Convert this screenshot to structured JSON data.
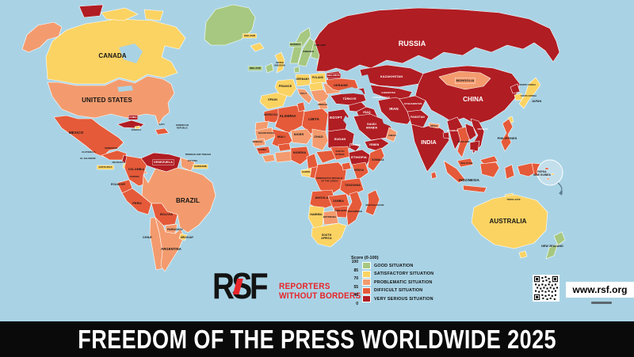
{
  "poster": {
    "title": "FREEDOM OF THE PRESS WORLDWIDE 2025"
  },
  "brand": {
    "initials": "RSF",
    "name_line1": "REPORTERS",
    "name_line2": "WITHOUT BORDERS",
    "website": "www.rsf.org",
    "accent_color": "#E8252A"
  },
  "legend": {
    "scale_title": "Score (0-100)",
    "ticks": [
      "100",
      "85",
      "70",
      "55",
      "40",
      "0"
    ],
    "entries": [
      {
        "status": "good",
        "label": "GOOD SITUATION",
        "color": "#A6C880"
      },
      {
        "status": "satisfactory",
        "label": "SATISFACTORY SITUATION",
        "color": "#FBD363"
      },
      {
        "status": "problematic",
        "label": "PROBLEMATIC SITUATION",
        "color": "#F39B6E"
      },
      {
        "status": "difficult",
        "label": "DIFFICULT SITUATION",
        "color": "#E55A39"
      },
      {
        "status": "very_serious",
        "label": "VERY SERIOUS SITUATION",
        "color": "#B01D23"
      }
    ]
  },
  "map": {
    "ocean_color": "#A9D3E5",
    "countries": [
      {
        "id": "greenland",
        "label": null,
        "status": "good"
      },
      {
        "id": "canada",
        "label": "CANADA",
        "status": "satisfactory"
      },
      {
        "id": "usa",
        "label": "UNITED STATES",
        "status": "problematic"
      },
      {
        "id": "mexico",
        "label": "MEXICO",
        "status": "difficult"
      },
      {
        "id": "guatemala",
        "label": "GUATEMALA",
        "status": "difficult"
      },
      {
        "id": "honduras",
        "label": "HONDURAS",
        "status": "difficult"
      },
      {
        "id": "el_salvador",
        "label": "EL SALVADOR",
        "status": "difficult"
      },
      {
        "id": "nicaragua",
        "label": "NICARAGUA",
        "status": "very_serious"
      },
      {
        "id": "costa_rica",
        "label": "COSTA RICA",
        "status": "satisfactory"
      },
      {
        "id": "panama",
        "label": "PANAMA",
        "status": "problematic"
      },
      {
        "id": "cuba",
        "label": "CUBA",
        "status": "very_serious"
      },
      {
        "id": "jamaica",
        "label": "JAMAICA",
        "status": "satisfactory"
      },
      {
        "id": "haiti",
        "label": "HAITI",
        "status": "difficult"
      },
      {
        "id": "dominican",
        "label": "DOMINICAN\nREPUBLIC",
        "status": "problematic"
      },
      {
        "id": "trinidad",
        "label": "TRINIDAD AND TOBAGO",
        "status": "satisfactory"
      },
      {
        "id": "venezuela",
        "label": "VENEZUELA",
        "status": "very_serious"
      },
      {
        "id": "colombia",
        "label": "COLOMBIA",
        "status": "difficult"
      },
      {
        "id": "guyana",
        "label": "GUYANA",
        "status": "problematic"
      },
      {
        "id": "suriname",
        "label": "SURINAME",
        "status": "satisfactory"
      },
      {
        "id": "ecuador",
        "label": "ECUADOR",
        "status": "difficult"
      },
      {
        "id": "peru",
        "label": "PERU",
        "status": "difficult"
      },
      {
        "id": "brazil",
        "label": "BRAZIL",
        "status": "problematic"
      },
      {
        "id": "bolivia",
        "label": "BOLIVIA",
        "status": "difficult"
      },
      {
        "id": "paraguay",
        "label": "PARAGUAY",
        "status": "problematic"
      },
      {
        "id": "chile",
        "label": "CHILE",
        "status": "problematic"
      },
      {
        "id": "argentina",
        "label": "ARGENTINA",
        "status": "problematic"
      },
      {
        "id": "uruguay",
        "label": "URUGUAY",
        "status": "satisfactory"
      },
      {
        "id": "iceland",
        "label": "ICELAND",
        "status": "satisfactory"
      },
      {
        "id": "ireland",
        "label": "IRELAND",
        "status": "good"
      },
      {
        "id": "uk",
        "label": "UNITED\nKINGDOM",
        "status": "satisfactory"
      },
      {
        "id": "norway",
        "label": "NORWAY",
        "status": "good"
      },
      {
        "id": "sweden",
        "label": "SWEDEN",
        "status": "good"
      },
      {
        "id": "finland",
        "label": "FINLAND",
        "status": "good"
      },
      {
        "id": "denmark",
        "label": null,
        "status": "good"
      },
      {
        "id": "baltics",
        "label": null,
        "status": "satisfactory"
      },
      {
        "id": "poland",
        "label": "POLAND",
        "status": "satisfactory"
      },
      {
        "id": "germany",
        "label": "GERMANY",
        "status": "satisfactory"
      },
      {
        "id": "france",
        "label": "FRANCE",
        "status": "satisfactory"
      },
      {
        "id": "spain",
        "label": "SPAIN",
        "status": "satisfactory"
      },
      {
        "id": "italy",
        "label": "ITALY",
        "status": "problematic"
      },
      {
        "id": "greece",
        "label": "GREECE",
        "status": "problematic"
      },
      {
        "id": "ukraine",
        "label": "UKRAINE",
        "status": "difficult"
      },
      {
        "id": "belarus",
        "label": "BELARUS",
        "status": "very_serious"
      },
      {
        "id": "russia",
        "label": "RUSSIA",
        "status": "very_serious"
      },
      {
        "id": "turkiye",
        "label": "TÜRKIYE",
        "status": "very_serious"
      },
      {
        "id": "kazakhstan",
        "label": "KAZAKHSTAN",
        "status": "very_serious"
      },
      {
        "id": "uzbekistan",
        "label": "UZBEKISTAN",
        "status": "very_serious"
      },
      {
        "id": "turkmenistan",
        "label": "TURKMENISTAN",
        "status": "very_serious"
      },
      {
        "id": "caucasus",
        "label": null,
        "status": "very_serious"
      },
      {
        "id": "syria",
        "label": null,
        "status": "very_serious"
      },
      {
        "id": "iraq",
        "label": "IRAQ",
        "status": "very_serious"
      },
      {
        "id": "iran",
        "label": "IRAN",
        "status": "very_serious"
      },
      {
        "id": "saudi_arabia",
        "label": "SAUDI\nARABIA",
        "status": "very_serious"
      },
      {
        "id": "yemen",
        "label": "YEMEN",
        "status": "very_serious"
      },
      {
        "id": "oman",
        "label": "OMAN",
        "status": "problematic"
      },
      {
        "id": "afghanistan",
        "label": "AFGHANISTAN",
        "status": "very_serious"
      },
      {
        "id": "pakistan",
        "label": "PAKISTAN",
        "status": "very_serious"
      },
      {
        "id": "india",
        "label": "INDIA",
        "status": "very_serious"
      },
      {
        "id": "nepal",
        "label": "NEPAL",
        "status": "problematic"
      },
      {
        "id": "bangladesh",
        "label": null,
        "status": "very_serious"
      },
      {
        "id": "sri_lanka",
        "label": null,
        "status": "difficult"
      },
      {
        "id": "china",
        "label": "CHINA",
        "status": "very_serious"
      },
      {
        "id": "mongolia",
        "label": "MONGOLIA",
        "status": "problematic"
      },
      {
        "id": "nkorea",
        "label": "NORTH KOREA",
        "status": "very_serious"
      },
      {
        "id": "skorea",
        "label": "SOUTH KOREA",
        "status": "satisfactory"
      },
      {
        "id": "japan",
        "label": "JAPAN",
        "status": "satisfactory"
      },
      {
        "id": "taiwan",
        "label": null,
        "status": "satisfactory"
      },
      {
        "id": "myanmar",
        "label": "MYANMAR",
        "status": "very_serious"
      },
      {
        "id": "thailand",
        "label": "THAILAND",
        "status": "difficult"
      },
      {
        "id": "laos",
        "label": null,
        "status": "very_serious"
      },
      {
        "id": "vietnam",
        "label": "VIETNAM",
        "status": "very_serious"
      },
      {
        "id": "cambodia",
        "label": null,
        "status": "very_serious"
      },
      {
        "id": "malaysia",
        "label": "MALAYSIA",
        "status": "difficult"
      },
      {
        "id": "philippines",
        "label": "PHILIPPINES",
        "status": "difficult"
      },
      {
        "id": "indonesia",
        "label": "INDONESIA",
        "status": "difficult"
      },
      {
        "id": "png",
        "label": "PAPUA\nNEW GUINEA",
        "status": "difficult"
      },
      {
        "id": "timor",
        "label": "TIMOR-LESTE",
        "status": "satisfactory"
      },
      {
        "id": "australia",
        "label": "AUSTRALIA",
        "status": "satisfactory"
      },
      {
        "id": "new_zealand",
        "label": "NEW ZEALAND",
        "status": "good"
      },
      {
        "id": "morocco",
        "label": "MOROCCO",
        "status": "difficult"
      },
      {
        "id": "western_sahara",
        "label": null,
        "status": "problematic"
      },
      {
        "id": "algeria",
        "label": "ALGERIA",
        "status": "difficult"
      },
      {
        "id": "tunisia",
        "label": null,
        "status": "difficult"
      },
      {
        "id": "libya",
        "label": "LIBYA",
        "status": "difficult"
      },
      {
        "id": "egypt",
        "label": "EGYPT",
        "status": "very_serious"
      },
      {
        "id": "mauritania",
        "label": "MAURITANIA",
        "status": "problematic"
      },
      {
        "id": "mali",
        "label": "MALI",
        "status": "difficult"
      },
      {
        "id": "niger",
        "label": "NIGER",
        "status": "problematic"
      },
      {
        "id": "chad",
        "label": "CHAD",
        "status": "problematic"
      },
      {
        "id": "senegal",
        "label": "SENEGAL",
        "status": "problematic"
      },
      {
        "id": "guinea",
        "label": "GUINEA",
        "status": "difficult"
      },
      {
        "id": "liberia_ci",
        "label": null,
        "status": "problematic"
      },
      {
        "id": "ghana_benin",
        "label": null,
        "status": "problematic"
      },
      {
        "id": "burkina",
        "label": null,
        "status": "difficult"
      },
      {
        "id": "nigeria",
        "label": "NIGERIA",
        "status": "difficult"
      },
      {
        "id": "cameroon",
        "label": null,
        "status": "difficult"
      },
      {
        "id": "car",
        "label": null,
        "status": "difficult"
      },
      {
        "id": "south_sudan",
        "label": "SOUTH\nSUDAN",
        "status": "difficult"
      },
      {
        "id": "sudan",
        "label": "SUDAN",
        "status": "very_serious"
      },
      {
        "id": "eritrea",
        "label": "ERITREA",
        "status": "very_serious"
      },
      {
        "id": "ethiopia",
        "label": "ETHIOPIA",
        "status": "very_serious"
      },
      {
        "id": "somalia",
        "label": "SOMALIA",
        "status": "difficult"
      },
      {
        "id": "gabon",
        "label": "GABON",
        "status": "satisfactory"
      },
      {
        "id": "congo",
        "label": null,
        "status": "difficult"
      },
      {
        "id": "drc",
        "label": "DEMOCRATIC REPUBLIC\nOF THE CONGO",
        "status": "difficult"
      },
      {
        "id": "uganda",
        "label": null,
        "status": "difficult"
      },
      {
        "id": "kenya",
        "label": "KENYA",
        "status": "difficult"
      },
      {
        "id": "tanzania",
        "label": "TANZANIA",
        "status": "difficult"
      },
      {
        "id": "angola",
        "label": "ANGOLA",
        "status": "difficult"
      },
      {
        "id": "zambia",
        "label": "ZAMBIA",
        "status": "difficult"
      },
      {
        "id": "mozambique",
        "label": "MOZAMBIQUE",
        "status": "difficult"
      },
      {
        "id": "zimbabwe",
        "label": "ZIMBABWE",
        "status": "difficult"
      },
      {
        "id": "botswana",
        "label": "BOTSWANA",
        "status": "problematic"
      },
      {
        "id": "namibia",
        "label": "NAMIBIA",
        "status": "satisfactory"
      },
      {
        "id": "south_africa",
        "label": "SOUTH\nAFRICA",
        "status": "satisfactory"
      },
      {
        "id": "madagascar",
        "label": "MADAGASCAR",
        "status": "difficult"
      }
    ]
  }
}
